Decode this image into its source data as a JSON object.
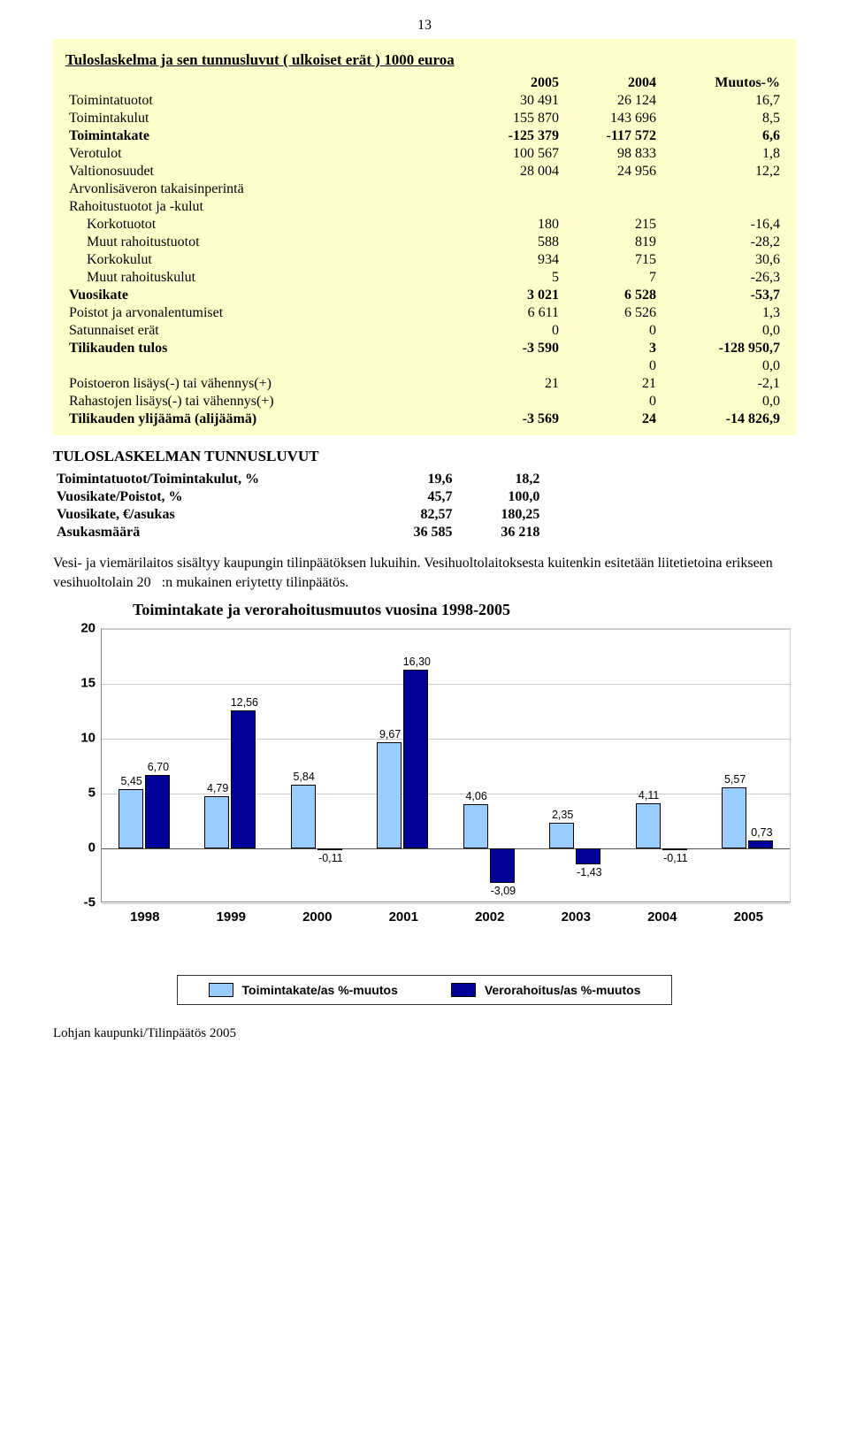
{
  "page_number": "13",
  "box": {
    "title": "Tuloslaskelma ja sen tunnusluvut ( ulkoiset erät ) 1000 euroa",
    "headers": [
      "",
      "2005",
      "2004",
      "Muutos-%"
    ],
    "rows": [
      {
        "label": "Toimintatuotot",
        "c1": "30 491",
        "c2": "26 124",
        "c3": "16,7",
        "indent": false,
        "bold": false
      },
      {
        "label": "Toimintakulut",
        "c1": "155 870",
        "c2": "143 696",
        "c3": "8,5",
        "indent": false,
        "bold": false
      },
      {
        "label": "Toimintakate",
        "c1": "-125 379",
        "c2": "-117 572",
        "c3": "6,6",
        "indent": false,
        "bold": true
      },
      {
        "label": "Verotulot",
        "c1": "100 567",
        "c2": "98 833",
        "c3": "1,8",
        "indent": false,
        "bold": false
      },
      {
        "label": "Valtionosuudet",
        "c1": "28 004",
        "c2": "24 956",
        "c3": "12,2",
        "indent": false,
        "bold": false
      },
      {
        "label": "Arvonlisäveron takaisinperintä",
        "c1": "",
        "c2": "",
        "c3": "",
        "indent": false,
        "bold": false
      },
      {
        "label": "Rahoitustuotot ja -kulut",
        "c1": "",
        "c2": "",
        "c3": "",
        "indent": false,
        "bold": false
      },
      {
        "label": "Korkotuotot",
        "c1": "180",
        "c2": "215",
        "c3": "-16,4",
        "indent": true,
        "bold": false
      },
      {
        "label": "Muut rahoitustuotot",
        "c1": "588",
        "c2": "819",
        "c3": "-28,2",
        "indent": true,
        "bold": false
      },
      {
        "label": "Korkokulut",
        "c1": "934",
        "c2": "715",
        "c3": "30,6",
        "indent": true,
        "bold": false
      },
      {
        "label": "Muut rahoituskulut",
        "c1": "5",
        "c2": "7",
        "c3": "-26,3",
        "indent": true,
        "bold": false
      },
      {
        "label": "Vuosikate",
        "c1": "3 021",
        "c2": "6 528",
        "c3": "-53,7",
        "indent": false,
        "bold": true
      },
      {
        "label": "Poistot ja arvonalentumiset",
        "c1": "6 611",
        "c2": "6 526",
        "c3": "1,3",
        "indent": false,
        "bold": false
      },
      {
        "label": "Satunnaiset erät",
        "c1": "0",
        "c2": "0",
        "c3": "0,0",
        "indent": false,
        "bold": false
      },
      {
        "label": "Tilikauden tulos",
        "c1": "-3 590",
        "c2": "3",
        "c3": "-128 950,7",
        "indent": false,
        "bold": true
      },
      {
        "label": "",
        "c1": "",
        "c2": "0",
        "c3": "0,0",
        "indent": false,
        "bold": false
      },
      {
        "label": "Poistoeron lisäys(-) tai vähennys(+)",
        "c1": "21",
        "c2": "21",
        "c3": "-2,1",
        "indent": false,
        "bold": false
      },
      {
        "label": "Rahastojen lisäys(-) tai vähennys(+)",
        "c1": "",
        "c2": "0",
        "c3": "0,0",
        "indent": false,
        "bold": false
      },
      {
        "label": "Tilikauden ylijäämä (alijäämä)",
        "c1": "-3 569",
        "c2": "24",
        "c3": "-14 826,9",
        "indent": false,
        "bold": true
      }
    ]
  },
  "tunnus": {
    "title": "TULOSLASKELMAN TUNNUSLUVUT",
    "rows": [
      {
        "label": "Toimintatuotot/Toimintakulut, %",
        "c1": "19,6",
        "c2": "18,2"
      },
      {
        "label": "Vuosikate/Poistot, %",
        "c1": "45,7",
        "c2": "100,0"
      },
      {
        "label": "Vuosikate, €/asukas",
        "c1": "82,57",
        "c2": "180,25"
      },
      {
        "label": "Asukasmäärä",
        "c1": "36 585",
        "c2": "36 218"
      }
    ]
  },
  "paragraph": "Vesi- ja viemärilaitos sisältyy kaupungin tilinpäätöksen lukuihin. Vesihuoltolaitoksesta kuitenkin esitetään liitetietoina erikseen vesihuoltolain 20   :n mukainen eriytetty tilinpäätös.",
  "chart": {
    "title": "Toimintakate ja verorahoitusmuutos vuosina 1998-2005",
    "ymin": -5,
    "ymax": 20,
    "ytick_step": 5,
    "categories": [
      "1998",
      "1999",
      "2000",
      "2001",
      "2002",
      "2003",
      "2004",
      "2005"
    ],
    "series": [
      {
        "name": "Toimintakate/as %-muutos",
        "color": "#99ccff",
        "border": "#000000",
        "values": [
          5.45,
          4.79,
          5.84,
          9.67,
          4.06,
          2.35,
          4.11,
          5.57
        ]
      },
      {
        "name": "Verorahoitus/as %-muutos",
        "color": "#000099",
        "border": "#000000",
        "values": [
          6.7,
          12.56,
          -0.11,
          16.3,
          -3.09,
          -1.43,
          -0.11,
          0.73
        ]
      }
    ],
    "label_fontsize": 12.5,
    "axis_fontsize": 15,
    "grid_color": "#cccccc",
    "background": "#ffffff",
    "bar_group_width": 0.62
  },
  "footer": "Lohjan kaupunki/Tilinpäätös 2005"
}
